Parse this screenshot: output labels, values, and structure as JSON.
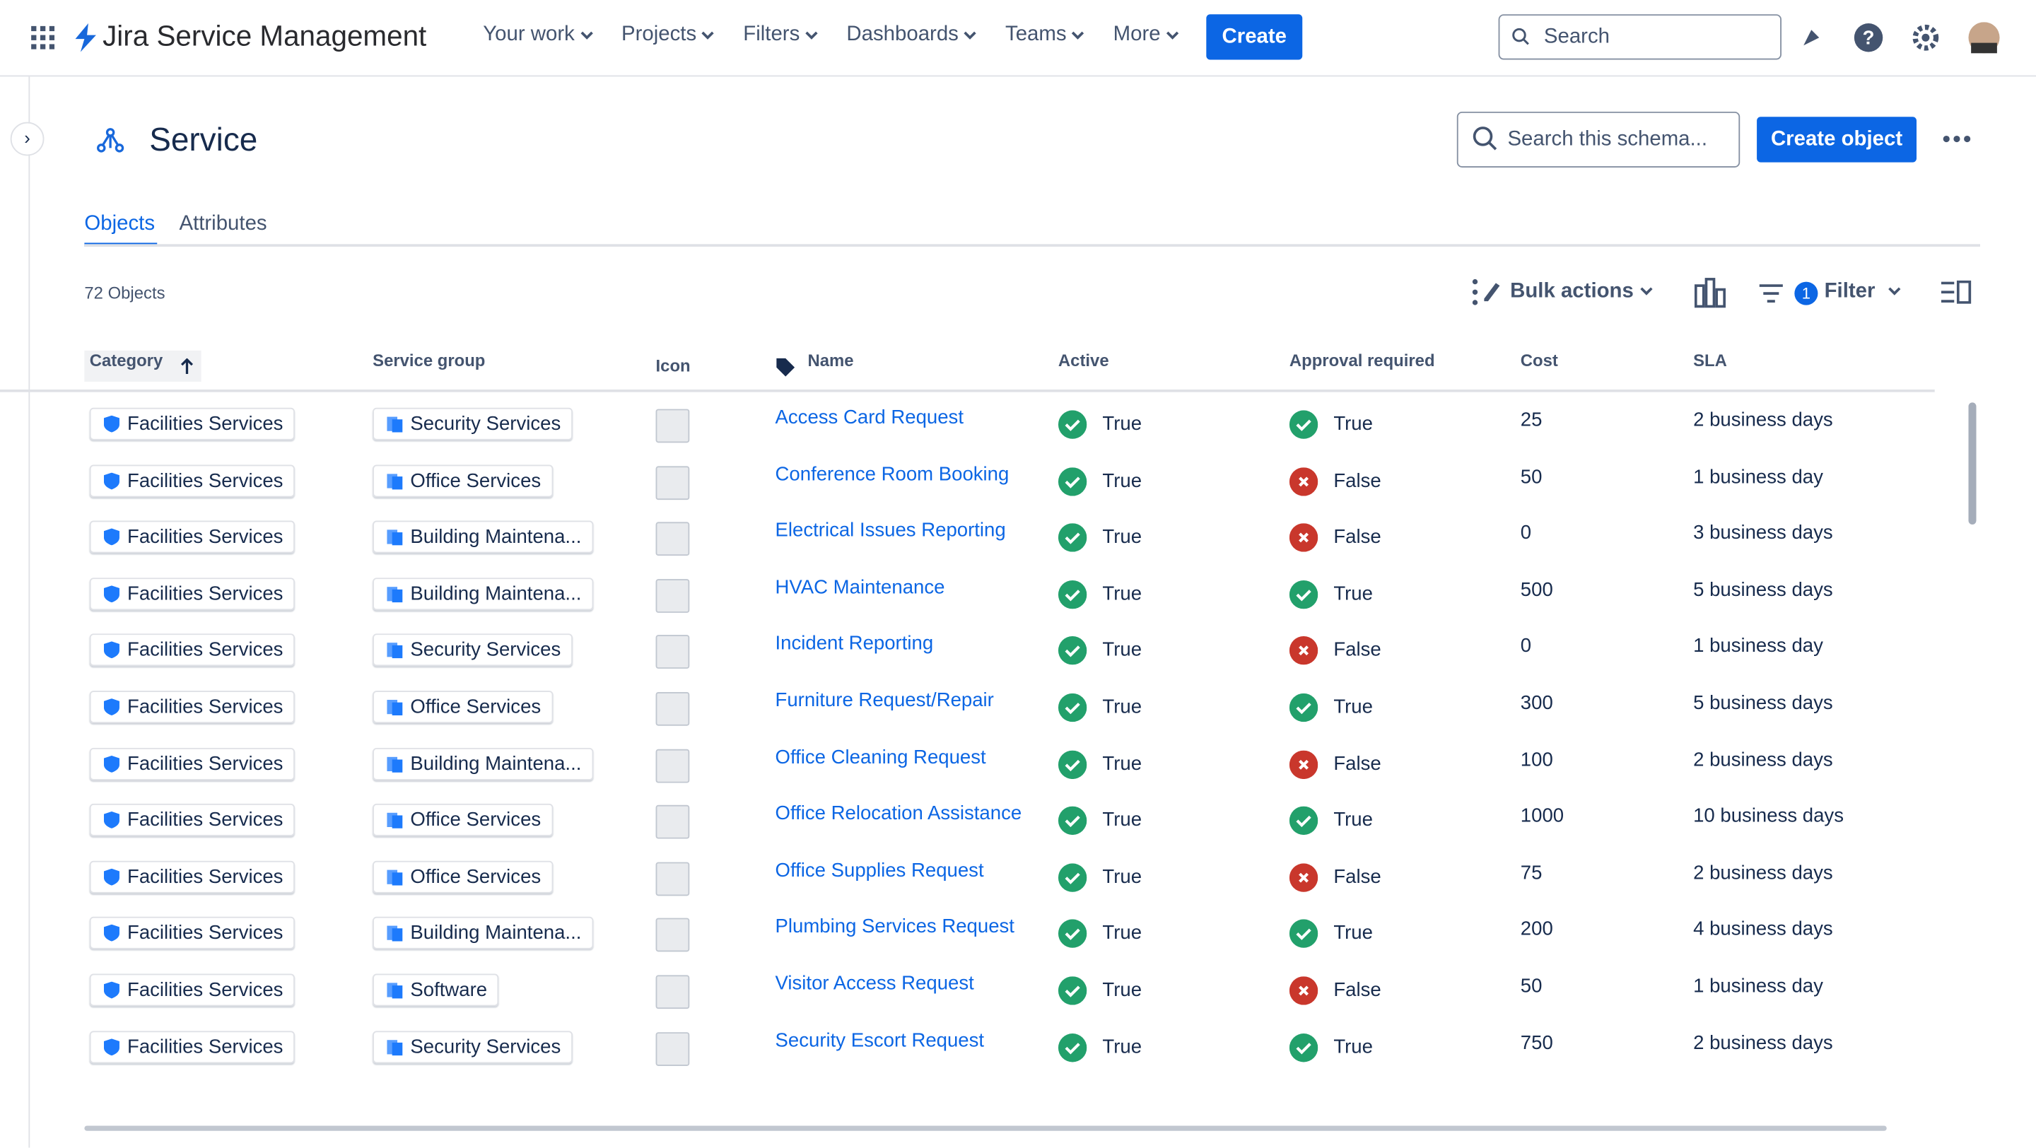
{
  "nav": {
    "product": "Jira Service Management",
    "menu": [
      "Your work",
      "Projects",
      "Filters",
      "Dashboards",
      "Teams",
      "More"
    ],
    "create": "Create",
    "search": "Search"
  },
  "page": {
    "title": "Service",
    "search_placeholder": "Search this schema...",
    "create_object": "Create object",
    "tabs": [
      "Objects",
      "Attributes"
    ],
    "object_count": "72 Objects",
    "bulk_actions": "Bulk actions",
    "filter_count": "1",
    "filter": "Filter"
  },
  "status_colors": {
    "True": "#22a06b",
    "False": "#c9372c"
  },
  "table": {
    "columns": [
      "Category",
      "Service group",
      "Icon",
      "Name",
      "Active",
      "Approval required",
      "Cost",
      "SLA"
    ],
    "rows": [
      [
        "Facilities Services",
        "Security Services",
        "Access Card Request",
        "True",
        "True",
        "25",
        "2 business days"
      ],
      [
        "Facilities Services",
        "Office Services",
        "Conference Room Booking",
        "True",
        "False",
        "50",
        "1 business day"
      ],
      [
        "Facilities Services",
        "Building Maintena...",
        "Electrical Issues Reporting",
        "True",
        "False",
        "0",
        "3 business days"
      ],
      [
        "Facilities Services",
        "Building Maintena...",
        "HVAC Maintenance",
        "True",
        "True",
        "500",
        "5 business days"
      ],
      [
        "Facilities Services",
        "Security Services",
        "Incident Reporting",
        "True",
        "False",
        "0",
        "1 business day"
      ],
      [
        "Facilities Services",
        "Office Services",
        "Furniture Request/Repair",
        "True",
        "True",
        "300",
        "5 business days"
      ],
      [
        "Facilities Services",
        "Building Maintena...",
        "Office Cleaning Request",
        "True",
        "False",
        "100",
        "2 business days"
      ],
      [
        "Facilities Services",
        "Office Services",
        "Office Relocation Assistance",
        "True",
        "True",
        "1000",
        "10 business days"
      ],
      [
        "Facilities Services",
        "Office Services",
        "Office Supplies Request",
        "True",
        "False",
        "75",
        "2 business days"
      ],
      [
        "Facilities Services",
        "Building Maintena...",
        "Plumbing Services Request",
        "True",
        "True",
        "200",
        "4 business days"
      ],
      [
        "Facilities Services",
        "Software",
        "Visitor Access Request",
        "True",
        "False",
        "50",
        "1 business day"
      ],
      [
        "Facilities Services",
        "Security Services",
        "Security Escort Request",
        "True",
        "True",
        "750",
        "2 business days"
      ]
    ]
  }
}
